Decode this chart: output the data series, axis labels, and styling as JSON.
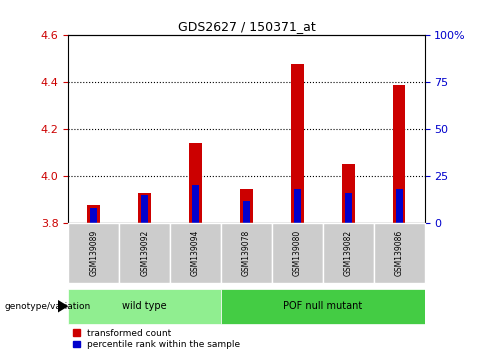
{
  "title": "GDS2627 / 150371_at",
  "samples": [
    "GSM139089",
    "GSM139092",
    "GSM139094",
    "GSM139078",
    "GSM139080",
    "GSM139082",
    "GSM139086"
  ],
  "group_labels": [
    "wild type",
    "POF null mutant"
  ],
  "wt_color_light": "#b8f0b8",
  "wt_color_dark": "#90ee90",
  "pof_color_light": "#44cc44",
  "pof_color_dark": "#22aa22",
  "transformed_count": [
    3.875,
    3.93,
    4.14,
    3.945,
    4.48,
    4.05,
    4.39
  ],
  "percentile_rank_pct": [
    8,
    15,
    20,
    12,
    18,
    16,
    18
  ],
  "bar_base": 3.8,
  "ylim_left": [
    3.8,
    4.6
  ],
  "ylim_right": [
    0,
    100
  ],
  "yticks_left": [
    3.8,
    4.0,
    4.2,
    4.4,
    4.6
  ],
  "yticks_right": [
    0,
    25,
    50,
    75,
    100
  ],
  "color_red": "#cc0000",
  "color_blue": "#0000cc",
  "color_gray_bg": "#cccccc",
  "bar_width": 0.25,
  "legend_red_label": "transformed count",
  "legend_blue_label": "percentile rank within the sample",
  "genotype_label": "genotype/variation"
}
